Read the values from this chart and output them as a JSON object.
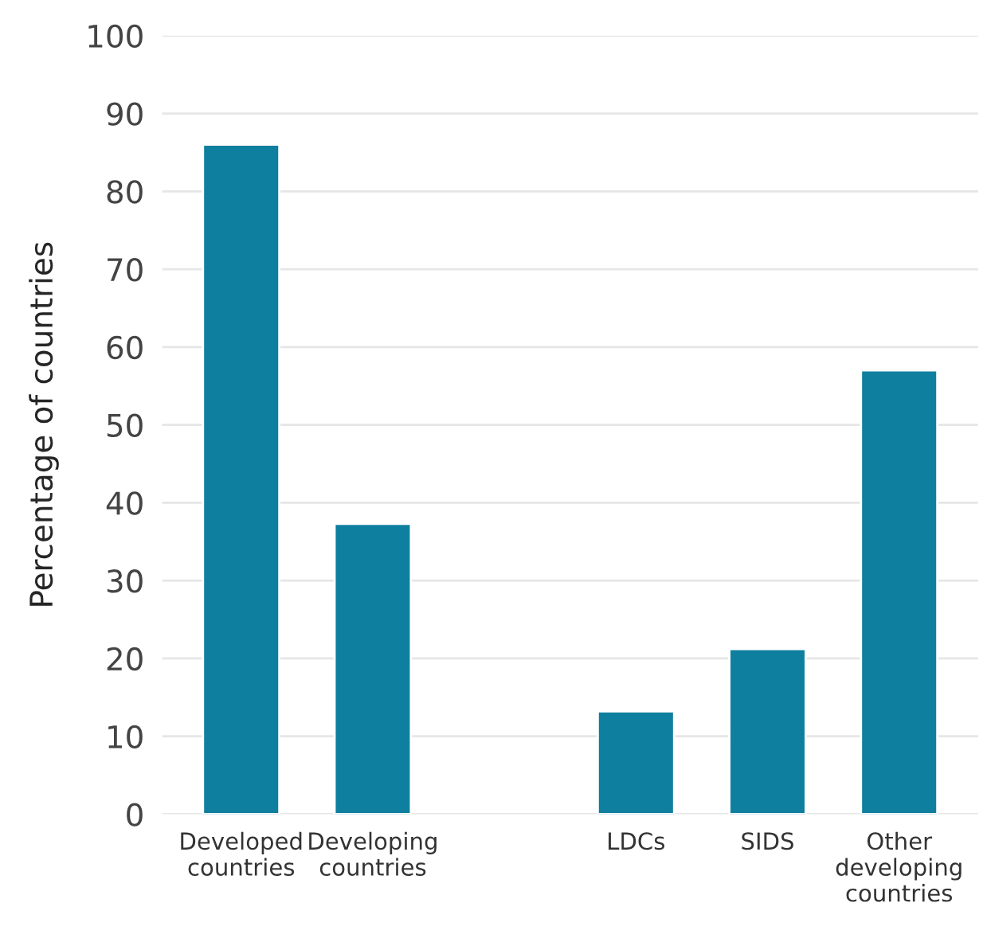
{
  "chart_data": {
    "type": "bar",
    "ylabel": "Percentage of countries",
    "categories": [
      "Developed\ncountries",
      "Developing\ncountries",
      null,
      "LDCs",
      "SIDS",
      "Other\ndeveloping\ncountries"
    ],
    "values": [
      86,
      37.3,
      null,
      13.2,
      21.2,
      57
    ],
    "color": "#0f7f9f",
    "ylim": [
      0,
      100
    ],
    "yticks": [
      0,
      10,
      20,
      30,
      40,
      50,
      60,
      70,
      80,
      90,
      100
    ],
    "grid": "y",
    "legend": false
  }
}
